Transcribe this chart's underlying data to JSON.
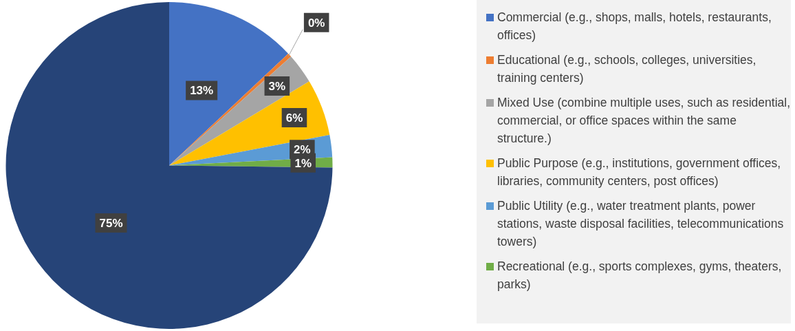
{
  "chart_data": {
    "type": "pie",
    "categories": [
      "Commercial  (e.g., shops, malls, hotels, restaurants, offices)",
      "Educational  (e.g., schools, colleges, universities, training centers)",
      "Mixed Use (combine multiple uses, such as residential, commercial, or office spaces within the same structure.)",
      "Public Purpose  (e.g., institutions, government offices, libraries, community centers, post offices)",
      "Public Utility  (e.g., water treatment plants, power stations, waste disposal facilities, telecommunications towers)",
      "Recreational  (e.g., sports complexes, gyms, theaters, parks)",
      null
    ],
    "values": [
      13,
      0.4,
      3,
      5.6,
      2.2,
      1,
      74.8
    ],
    "value_labels": [
      "13%",
      "0%",
      "3%",
      "6%",
      "2%",
      "1%",
      "75%"
    ],
    "colors": [
      "#4472c4",
      "#ed7d31",
      "#a5a5a5",
      "#ffc000",
      "#5b9bd5",
      "#70ad47",
      "#264478"
    ],
    "legend": "right"
  }
}
